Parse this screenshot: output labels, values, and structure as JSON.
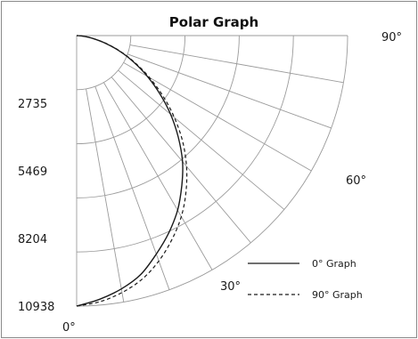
{
  "chart_data": {
    "type": "polar",
    "title": "Polar Graph",
    "radial_ticks": [
      2735,
      5469,
      8204,
      10938
    ],
    "radial_max": 10938,
    "angle_labels": [
      "0°",
      "30°",
      "60°",
      "90°"
    ],
    "angular_range": [
      0,
      90
    ],
    "grid": true,
    "legend_position": "bottom-right",
    "series": [
      {
        "name": "0° Graph",
        "style": "solid",
        "points": [
          {
            "angle": 0,
            "r": 10938
          },
          {
            "angle": 5,
            "r": 10700
          },
          {
            "angle": 10,
            "r": 10400
          },
          {
            "angle": 15,
            "r": 10000
          },
          {
            "angle": 20,
            "r": 9400
          },
          {
            "angle": 25,
            "r": 8800
          },
          {
            "angle": 30,
            "r": 8150
          },
          {
            "angle": 35,
            "r": 7400
          },
          {
            "angle": 40,
            "r": 6650
          },
          {
            "angle": 45,
            "r": 5800
          },
          {
            "angle": 50,
            "r": 4950
          },
          {
            "angle": 55,
            "r": 4100
          },
          {
            "angle": 60,
            "r": 3300
          },
          {
            "angle": 65,
            "r": 2550
          },
          {
            "angle": 70,
            "r": 1850
          },
          {
            "angle": 75,
            "r": 1200
          },
          {
            "angle": 80,
            "r": 650
          },
          {
            "angle": 85,
            "r": 250
          },
          {
            "angle": 90,
            "r": 0
          }
        ]
      },
      {
        "name": "90° Graph",
        "style": "dashed",
        "points": [
          {
            "angle": 0,
            "r": 10938
          },
          {
            "angle": 5,
            "r": 10800
          },
          {
            "angle": 10,
            "r": 10550
          },
          {
            "angle": 15,
            "r": 10200
          },
          {
            "angle": 20,
            "r": 9700
          },
          {
            "angle": 25,
            "r": 9100
          },
          {
            "angle": 30,
            "r": 8450
          },
          {
            "angle": 35,
            "r": 7700
          },
          {
            "angle": 40,
            "r": 6900
          },
          {
            "angle": 45,
            "r": 6050
          },
          {
            "angle": 50,
            "r": 5150
          },
          {
            "angle": 55,
            "r": 4250
          },
          {
            "angle": 60,
            "r": 3400
          },
          {
            "angle": 65,
            "r": 2600
          },
          {
            "angle": 70,
            "r": 1900
          },
          {
            "angle": 75,
            "r": 1250
          },
          {
            "angle": 80,
            "r": 650
          },
          {
            "angle": 85,
            "r": 250
          },
          {
            "angle": 90,
            "r": 0
          }
        ]
      }
    ]
  }
}
